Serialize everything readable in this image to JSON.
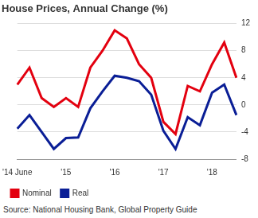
{
  "chart_data": {
    "type": "line",
    "title": "House Prices, Annual Change (%)",
    "source": "Source: National Housing Bank, Global Property Guide",
    "categories": [
      "'14 June",
      null,
      null,
      null,
      "'15",
      null,
      null,
      null,
      "'16",
      null,
      null,
      null,
      "'17",
      null,
      null,
      null,
      "'18",
      null,
      null
    ],
    "series": [
      {
        "name": "Nominal",
        "color": "#e3000f",
        "values": [
          3,
          5.5,
          1,
          -0.3,
          1,
          -0.3,
          5.5,
          8,
          11,
          9.8,
          6,
          4,
          -2.5,
          -4.3,
          2.8,
          2,
          6,
          9.2,
          4
        ]
      },
      {
        "name": "Real",
        "color": "#0a1e96",
        "values": [
          -3.5,
          -1.5,
          -4,
          -6.5,
          -4.9,
          -4.8,
          -0.5,
          2,
          4.3,
          4,
          3.5,
          1.5,
          -3.8,
          -6.5,
          -1.8,
          -3,
          1.8,
          3,
          -1.5
        ]
      }
    ],
    "ylim": [
      -8,
      12
    ],
    "yticks": [
      -8,
      -4,
      0,
      4,
      8,
      12
    ],
    "grid": true,
    "legend": "bottom left"
  }
}
